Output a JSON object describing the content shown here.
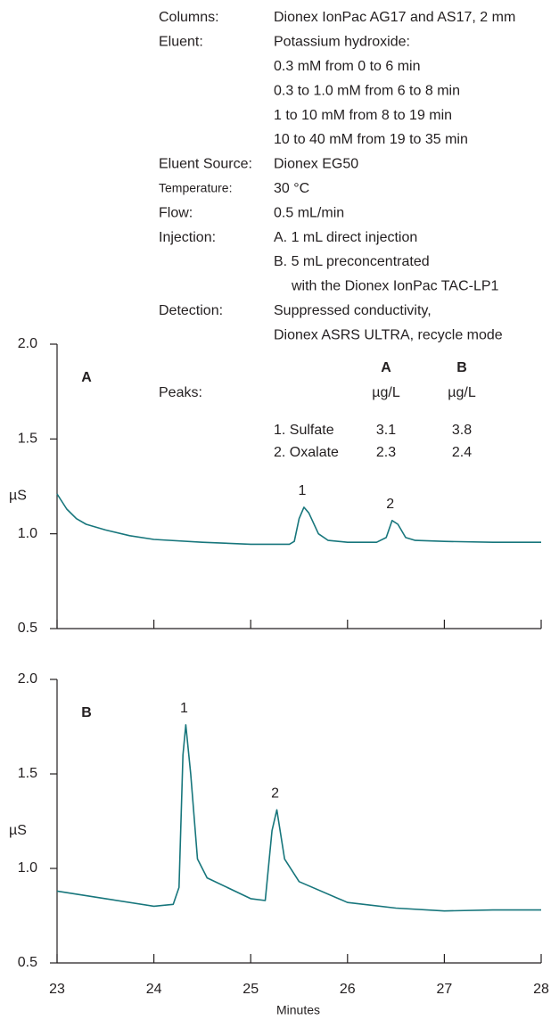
{
  "conditions": [
    {
      "label": "Columns:",
      "lines": [
        "Dionex IonPac AG17 and AS17, 2 mm"
      ]
    },
    {
      "label": "Eluent:",
      "lines": [
        "Potassium hydroxide:",
        "0.3 mM from 0 to 6 min",
        "0.3 to 1.0 mM from 6 to 8 min",
        "1 to 10 mM from 8 to 19 min",
        "10 to 40 mM from 19 to 35 min"
      ]
    },
    {
      "label": "Eluent Source:",
      "lines": [
        "Dionex EG50"
      ]
    },
    {
      "label": "Temperature:",
      "lines": [
        "30 °C"
      ]
    },
    {
      "label": "Flow:",
      "lines": [
        "0.5 mL/min"
      ]
    },
    {
      "label": "Injection:",
      "lines": [
        "A. 1 mL direct injection",
        "B. 5 mL preconcentrated",
        "with the Dionex IonPac TAC-LP1"
      ]
    },
    {
      "label": "Detection:",
      "lines": [
        "Suppressed conductivity,",
        "Dionex ASRS ULTRA, recycle mode"
      ]
    }
  ],
  "peak_table": {
    "label": "Peaks:",
    "columns": [
      "A",
      "B"
    ],
    "units": [
      "µg/L",
      "µg/L"
    ],
    "rows": [
      {
        "name": "1. Sulfate",
        "values": [
          3.1,
          3.8
        ]
      },
      {
        "name": "2. Oxalate",
        "values": [
          2.3,
          2.4
        ]
      }
    ]
  },
  "chart_data": [
    {
      "type": "line",
      "panel_label": "A",
      "ylabel": "µS",
      "color": "#17767c",
      "xlim": [
        23,
        28
      ],
      "xticks": [
        23,
        24,
        25,
        26,
        27,
        28
      ],
      "xtick_labels": false,
      "ylim": [
        0.5,
        2.0
      ],
      "yticks": [
        0.5,
        {
          "value": 1.0,
          "label": "1.0"
        },
        1.5,
        {
          "value": 2.0,
          "label": "2.0"
        }
      ],
      "x": [
        23.0,
        23.1,
        23.2,
        23.3,
        23.5,
        23.75,
        24.0,
        24.5,
        25.0,
        25.4,
        25.45,
        25.5,
        25.55,
        25.6,
        25.7,
        25.8,
        26.0,
        26.3,
        26.4,
        26.46,
        26.52,
        26.6,
        26.7,
        27.0,
        27.5,
        28.0
      ],
      "values": [
        1.21,
        1.13,
        1.08,
        1.05,
        1.02,
        0.99,
        0.97,
        0.955,
        0.945,
        0.945,
        0.96,
        1.08,
        1.14,
        1.11,
        1.0,
        0.965,
        0.955,
        0.955,
        0.98,
        1.07,
        1.05,
        0.98,
        0.965,
        0.96,
        0.955,
        0.955
      ],
      "annotations": [
        {
          "label": "1",
          "x": 25.55,
          "y": 1.14
        },
        {
          "label": "2",
          "x": 26.46,
          "y": 1.07
        }
      ]
    },
    {
      "type": "line",
      "panel_label": "B",
      "ylabel": "µS",
      "xlabel": "Minutes",
      "color": "#17767c",
      "xlim": [
        23,
        28
      ],
      "xticks": [
        23,
        24,
        25,
        26,
        27,
        28
      ],
      "xtick_labels": true,
      "ylim": [
        0.5,
        2.0
      ],
      "yticks": [
        0.5,
        {
          "value": 1.0,
          "label": "1.0"
        },
        1.5,
        {
          "value": 2.0,
          "label": "2.0"
        }
      ],
      "x": [
        23.0,
        23.5,
        24.0,
        24.2,
        24.26,
        24.3,
        24.33,
        24.38,
        24.45,
        24.55,
        25.0,
        25.15,
        25.22,
        25.27,
        25.35,
        25.5,
        26.0,
        26.5,
        27.0,
        27.5,
        28.0
      ],
      "values": [
        0.88,
        0.84,
        0.8,
        0.81,
        0.9,
        1.6,
        1.76,
        1.5,
        1.05,
        0.95,
        0.84,
        0.83,
        1.2,
        1.31,
        1.05,
        0.93,
        0.82,
        0.79,
        0.775,
        0.78,
        0.78
      ],
      "annotations": [
        {
          "label": "1",
          "x": 24.33,
          "y": 1.76
        },
        {
          "label": "2",
          "x": 25.27,
          "y": 1.31
        }
      ]
    }
  ]
}
